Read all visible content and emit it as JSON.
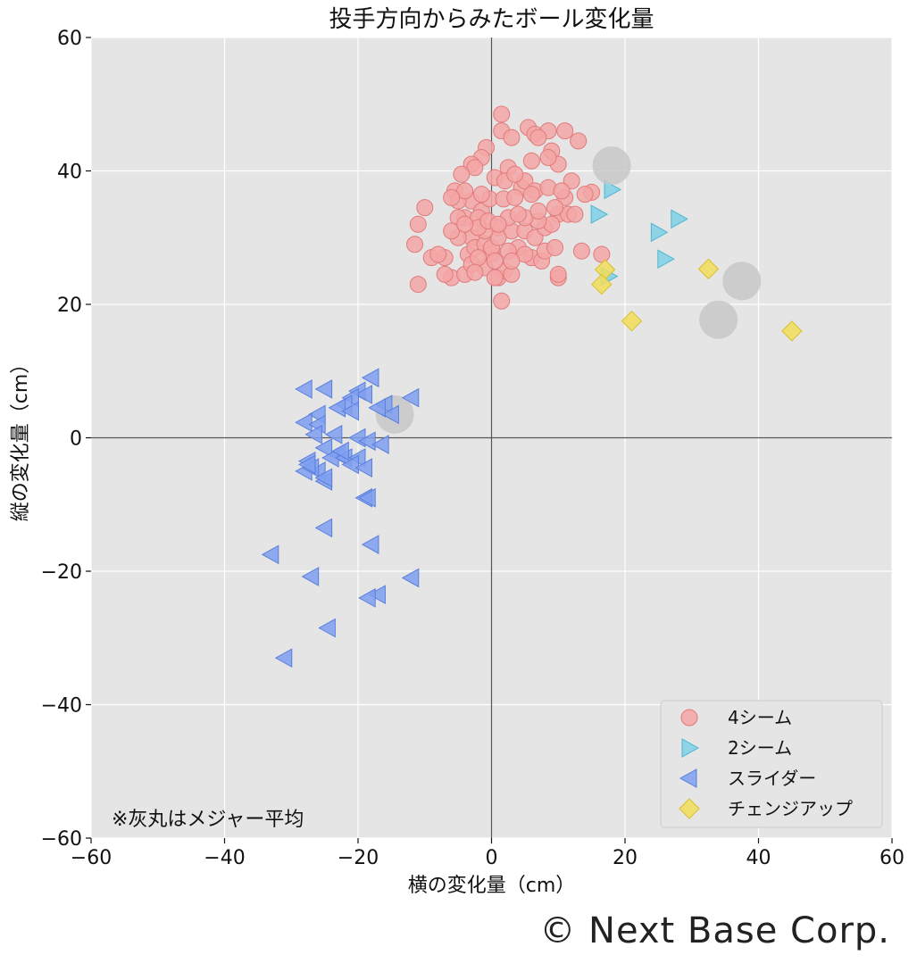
{
  "chart_data": {
    "type": "scatter",
    "title": "投手方向からみたボール変化量",
    "xlabel": "横の変化量（cm）",
    "ylabel": "縦の変化量（cm）",
    "xlim": [
      -60,
      60
    ],
    "ylim": [
      -60,
      60
    ],
    "xticks": [
      -60,
      -40,
      -20,
      0,
      20,
      40,
      60
    ],
    "yticks": [
      -60,
      -40,
      -20,
      0,
      20,
      40,
      60
    ],
    "xtick_labels": [
      "−60",
      "−40",
      "−20",
      "0",
      "20",
      "40",
      "60"
    ],
    "ytick_labels": [
      "−60",
      "−40",
      "−20",
      "0",
      "20",
      "40",
      "60"
    ],
    "grid": true,
    "background": "#e5e5e5",
    "legend_position": "lower-right",
    "note": "※灰丸はメジャー平均",
    "series": [
      {
        "name": "4シーム",
        "marker": "circle",
        "color": "#f4a6a6",
        "edge": "#e07b7b",
        "points": [
          [
            1.5,
            48.5
          ],
          [
            1.5,
            46
          ],
          [
            5.5,
            46.5
          ],
          [
            6.5,
            45.5
          ],
          [
            8.5,
            46
          ],
          [
            11,
            46
          ],
          [
            13,
            44.5
          ],
          [
            3,
            45
          ],
          [
            7,
            45
          ],
          [
            9,
            43
          ],
          [
            -0.8,
            43.5
          ],
          [
            -1.5,
            42
          ],
          [
            -3,
            41
          ],
          [
            -2.5,
            40.5
          ],
          [
            -4.5,
            39.5
          ],
          [
            2.5,
            40.5
          ],
          [
            6,
            41.5
          ],
          [
            10,
            41
          ],
          [
            8.5,
            42
          ],
          [
            4.5,
            37.5
          ],
          [
            0.5,
            39
          ],
          [
            2,
            38.5
          ],
          [
            5,
            38.5
          ],
          [
            12,
            38.5
          ],
          [
            3.5,
            39.5
          ],
          [
            6.5,
            37
          ],
          [
            8.5,
            37.5
          ],
          [
            -11,
            32
          ],
          [
            -10,
            34.5
          ],
          [
            -5.5,
            37
          ],
          [
            -3,
            35.5
          ],
          [
            -5,
            35.5
          ],
          [
            -1.5,
            34
          ],
          [
            -0.3,
            35.8
          ],
          [
            1.8,
            35.8
          ],
          [
            3.5,
            36
          ],
          [
            6,
            36.5
          ],
          [
            11,
            36
          ],
          [
            15,
            36.8
          ],
          [
            14,
            36.5
          ],
          [
            -11.5,
            29
          ],
          [
            -9,
            27
          ],
          [
            -7,
            27
          ],
          [
            -6,
            24
          ],
          [
            -4,
            24.5
          ],
          [
            -3.5,
            27.5
          ],
          [
            -3,
            30
          ],
          [
            -4,
            33
          ],
          [
            -5,
            33
          ],
          [
            -2,
            33
          ],
          [
            -2.5,
            28.5
          ],
          [
            -1,
            29
          ],
          [
            1,
            31.5
          ],
          [
            3,
            31
          ],
          [
            5,
            31
          ],
          [
            6,
            27
          ],
          [
            7.5,
            26.5
          ],
          [
            8,
            28
          ],
          [
            9.5,
            28.5
          ],
          [
            10,
            24
          ],
          [
            10,
            24.5
          ],
          [
            1,
            24
          ],
          [
            0,
            27.5
          ],
          [
            -1,
            25.5
          ],
          [
            -3,
            26
          ],
          [
            -5,
            30
          ],
          [
            -6,
            31
          ],
          [
            -7,
            24.5
          ],
          [
            -8,
            27.5
          ],
          [
            -11,
            23
          ],
          [
            0,
            28.5
          ],
          [
            1,
            30
          ],
          [
            2,
            25
          ],
          [
            3,
            24.5
          ],
          [
            4,
            28.5
          ],
          [
            5,
            27.5
          ],
          [
            6.5,
            30
          ],
          [
            8,
            31.5
          ],
          [
            10,
            33.5
          ],
          [
            11.5,
            33.5
          ],
          [
            12.5,
            33.5
          ],
          [
            9,
            32
          ],
          [
            7,
            32.5
          ],
          [
            5,
            33
          ],
          [
            2.5,
            33
          ],
          [
            -1,
            31
          ],
          [
            -2,
            31.5
          ],
          [
            -0.5,
            32.5
          ],
          [
            1,
            32
          ],
          [
            1.5,
            20.5
          ],
          [
            -2,
            27
          ],
          [
            0.5,
            26.5
          ],
          [
            -4,
            32
          ],
          [
            7,
            34
          ],
          [
            9.5,
            34.5
          ],
          [
            -1.5,
            36.5
          ],
          [
            -4,
            37
          ],
          [
            13.5,
            28
          ],
          [
            16.5,
            27.5
          ],
          [
            10.5,
            37
          ],
          [
            -6,
            36
          ],
          [
            4,
            33.5
          ],
          [
            2.5,
            28
          ],
          [
            -2.5,
            24.8
          ],
          [
            3,
            26.5
          ],
          [
            0.5,
            24
          ]
        ]
      },
      {
        "name": "2シーム",
        "marker": "triangle-right",
        "color": "#7fd0e6",
        "edge": "#4fb5d0",
        "points": [
          [
            18,
            37.2
          ],
          [
            16,
            33.5
          ],
          [
            28,
            32.8
          ],
          [
            25,
            30.8
          ],
          [
            26,
            26.8
          ],
          [
            17.5,
            24.2
          ]
        ]
      },
      {
        "name": "スライダー",
        "marker": "triangle-left",
        "color": "#7f9ff0",
        "edge": "#5a7fdc",
        "points": [
          [
            -28,
            7.3
          ],
          [
            -25,
            7.3
          ],
          [
            -18,
            9
          ],
          [
            -20,
            7
          ],
          [
            -19,
            6.5
          ],
          [
            -21,
            6
          ],
          [
            -22,
            5
          ],
          [
            -23,
            4.5
          ],
          [
            -21,
            4
          ],
          [
            -16,
            5
          ],
          [
            -12,
            6
          ],
          [
            -15,
            3.5
          ],
          [
            -17,
            4.5
          ],
          [
            -26,
            3.5
          ],
          [
            -28,
            2.3
          ],
          [
            -26,
            2
          ],
          [
            -23.5,
            0.5
          ],
          [
            -26.5,
            0.5
          ],
          [
            -25,
            -1.5
          ],
          [
            -20,
            0
          ],
          [
            -18.5,
            -0.5
          ],
          [
            -16.5,
            -1
          ],
          [
            -23,
            -2.5
          ],
          [
            -27.5,
            -3.5
          ],
          [
            -26,
            -5
          ],
          [
            -24,
            -3
          ],
          [
            -22,
            -3
          ],
          [
            -20,
            -3
          ],
          [
            -21,
            -4
          ],
          [
            -19,
            -4.5
          ],
          [
            -28,
            -5
          ],
          [
            -27,
            -4.5
          ],
          [
            -25,
            -6.5
          ],
          [
            -19,
            -9
          ],
          [
            -18.5,
            -9
          ],
          [
            -25,
            -13.5
          ],
          [
            -18,
            -16
          ],
          [
            -33,
            -17.5
          ],
          [
            -27,
            -20.8
          ],
          [
            -12,
            -21
          ],
          [
            -17,
            -23.5
          ],
          [
            -18.5,
            -24
          ],
          [
            -24.5,
            -28.5
          ],
          [
            -31,
            -33
          ],
          [
            -27.5,
            -4
          ],
          [
            -22.5,
            -2
          ],
          [
            -25,
            -6
          ]
        ]
      },
      {
        "name": "チェンジアップ",
        "marker": "diamond",
        "color": "#f2dd5a",
        "edge": "#d8c02e",
        "points": [
          [
            17,
            25.2
          ],
          [
            16.5,
            23
          ],
          [
            21,
            17.5
          ],
          [
            32.5,
            25.3
          ],
          [
            45,
            16
          ]
        ]
      },
      {
        "name": "",
        "marker": "big-circle",
        "color": "#c8c8c8",
        "edge": "#c8c8c8",
        "in_legend": false,
        "points": [
          [
            18,
            40.8
          ],
          [
            37.5,
            23.5
          ],
          [
            34,
            17.7
          ],
          [
            -14.5,
            3.5
          ]
        ]
      }
    ]
  },
  "copyright": "© Next Base Corp."
}
